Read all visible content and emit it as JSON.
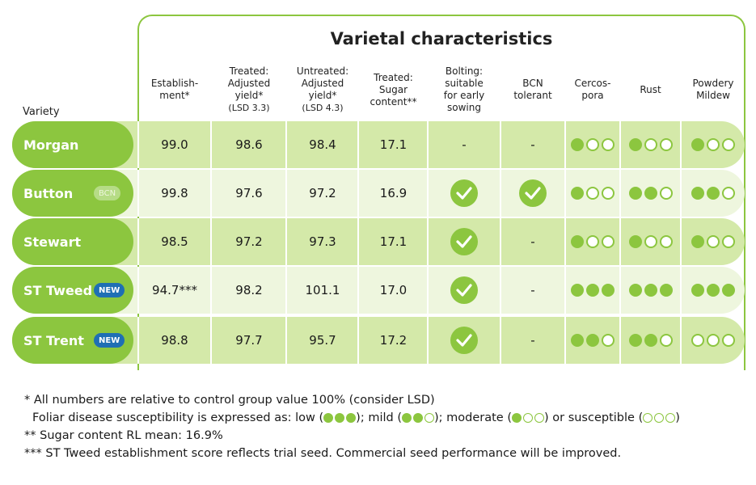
{
  "title": "Varietal characteristics",
  "variety_header": "Variety",
  "columns": [
    {
      "line1": "Establish-",
      "line2": "ment*",
      "line3": ""
    },
    {
      "line1": "Treated:",
      "line2": "Adjusted",
      "line3": "yield*",
      "sub": "(LSD 3.3)"
    },
    {
      "line1": "Untreated:",
      "line2": "Adjusted",
      "line3": "yield*",
      "sub": "(LSD 4.3)"
    },
    {
      "line1": "Treated:",
      "line2": "Sugar",
      "line3": "content**",
      "sub": ""
    },
    {
      "line1": "Bolting:",
      "line2": "suitable",
      "line3": "for early",
      "sub": "sowing"
    },
    {
      "line1": "BCN",
      "line2": "tolerant",
      "line3": "",
      "sub": ""
    },
    {
      "line1": "Cercos-",
      "line2": "pora",
      "line3": "",
      "sub": ""
    },
    {
      "line1": "Rust",
      "line2": "",
      "line3": "",
      "sub": ""
    },
    {
      "line1": "Powdery",
      "line2": "Mildew",
      "line3": "",
      "sub": ""
    }
  ],
  "rows": [
    {
      "name": "Morgan",
      "badge": "",
      "establishment": "99.0",
      "treated_yield": "98.6",
      "untreated_yield": "98.4",
      "sugar": "17.1",
      "bolting": "-",
      "bcn": "-",
      "cercospora": 1,
      "rust": 1,
      "mildew": 1
    },
    {
      "name": "Button",
      "badge": "BCN",
      "establishment": "99.8",
      "treated_yield": "97.6",
      "untreated_yield": "97.2",
      "sugar": "16.9",
      "bolting": "check",
      "bcn": "check",
      "cercospora": 1,
      "rust": 2,
      "mildew": 2
    },
    {
      "name": "Stewart",
      "badge": "",
      "establishment": "98.5",
      "treated_yield": "97.2",
      "untreated_yield": "97.3",
      "sugar": "17.1",
      "bolting": "check",
      "bcn": "-",
      "cercospora": 1,
      "rust": 1,
      "mildew": 1
    },
    {
      "name": "ST Tweed",
      "badge": "NEW",
      "establishment": "94.7***",
      "treated_yield": "98.2",
      "untreated_yield": "101.1",
      "sugar": "17.0",
      "bolting": "check",
      "bcn": "-",
      "cercospora": 3,
      "rust": 3,
      "mildew": 3
    },
    {
      "name": "ST Trent",
      "badge": "NEW",
      "establishment": "98.8",
      "treated_yield": "97.7",
      "untreated_yield": "95.7",
      "sugar": "17.2",
      "bolting": "check",
      "bcn": "-",
      "cercospora": 2,
      "rust": 2,
      "mildew": 0
    }
  ],
  "footnotes": {
    "line1": "* All numbers are relative to control group value 100% (consider LSD)",
    "line2_prefix": "Foliar disease susceptibility is expressed as: low (",
    "line2_low_end": "); mild (",
    "line2_mild_end": "); moderate (",
    "line2_mod_end": ") or susceptible (",
    "line2_end": ")",
    "line3": "** Sugar content RL mean: 16.9%",
    "line4": "*** ST Tweed establishment score reflects trial seed. Commercial seed performance will be improved."
  },
  "colors": {
    "green": "#8cc63f",
    "row_dark": "#d4e9a9",
    "row_light": "#eef6de",
    "new_badge": "#1f6fb4"
  }
}
